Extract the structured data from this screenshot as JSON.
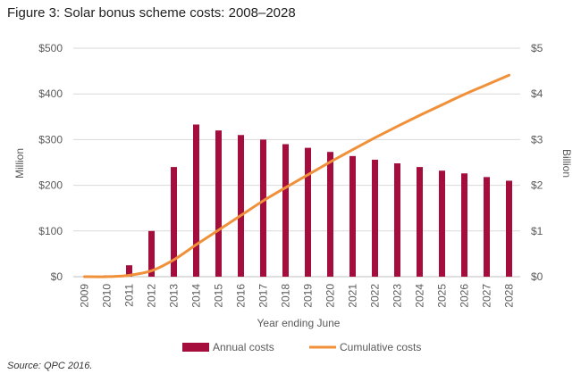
{
  "figure": {
    "title": "Figure 3: Solar bonus scheme costs: 2008–2028",
    "source": "Source: QPC 2016."
  },
  "chart_data": {
    "type": "bar",
    "title": "Figure 3: Solar bonus scheme costs: 2008–2028",
    "xlabel": "Year ending June",
    "ylabel": "Million",
    "y2label": "Billion",
    "categories": [
      "2009",
      "2010",
      "2011",
      "2012",
      "2013",
      "2014",
      "2015",
      "2016",
      "2017",
      "2018",
      "2019",
      "2020",
      "2021",
      "2022",
      "2023",
      "2024",
      "2025",
      "2026",
      "2027",
      "2028"
    ],
    "ylim": [
      0,
      500
    ],
    "y2lim": [
      0,
      5
    ],
    "yticks": [
      "$0",
      "$100",
      "$200",
      "$300",
      "$400",
      "$500"
    ],
    "y2ticks": [
      "$0",
      "$1",
      "$2",
      "$3",
      "$4",
      "$5"
    ],
    "grid": true,
    "legend_position": "bottom",
    "series": [
      {
        "name": "Annual costs",
        "type": "bar",
        "axis": "left",
        "color": "#A50D3C",
        "values": [
          0,
          3,
          25,
          100,
          240,
          333,
          320,
          310,
          300,
          290,
          282,
          273,
          264,
          256,
          248,
          240,
          232,
          226,
          218,
          210
        ]
      },
      {
        "name": "Cumulative costs",
        "type": "line",
        "axis": "right",
        "color": "#F0913A",
        "values": [
          0,
          0.0,
          0.03,
          0.13,
          0.37,
          0.7,
          1.02,
          1.34,
          1.66,
          1.95,
          2.23,
          2.51,
          2.78,
          3.04,
          3.29,
          3.53,
          3.76,
          3.99,
          4.2,
          4.41
        ]
      }
    ]
  }
}
